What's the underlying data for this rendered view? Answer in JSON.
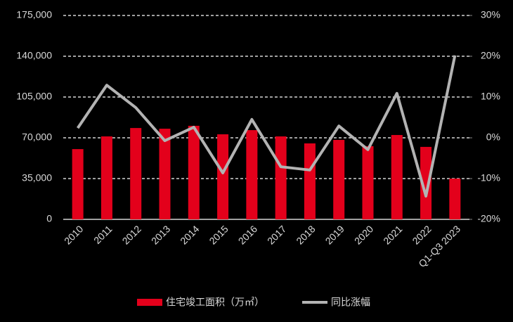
{
  "chart_data": {
    "type": "bar",
    "categories": [
      "2010",
      "2011",
      "2012",
      "2013",
      "2014",
      "2015",
      "2016",
      "2017",
      "2018",
      "2019",
      "2020",
      "2021",
      "2022",
      "Q1-Q3 2023"
    ],
    "series": [
      {
        "name": "住宅竣工面积（万㎡）",
        "type": "bar",
        "color": "#e3001b",
        "values": [
          60300,
          71200,
          78400,
          77800,
          80300,
          73000,
          76600,
          71200,
          65200,
          68200,
          62800,
          72400,
          62200,
          35000
        ]
      },
      {
        "name": "同比涨幅",
        "type": "line",
        "axis": "y2",
        "color": "#b3b3b3",
        "values": [
          2.4,
          12.9,
          7.4,
          -0.7,
          2.6,
          -8.6,
          4.5,
          -7.1,
          -7.9,
          2.9,
          -2.9,
          10.9,
          -14.3,
          20.2
        ]
      }
    ],
    "ylim": [
      0,
      175000
    ],
    "yticks": [
      0,
      {
        "value": 35000,
        "label": "35,000"
      },
      {
        "value": 70000,
        "label": "70,000"
      },
      {
        "value": 105000,
        "label": "105,000"
      },
      {
        "value": 140000,
        "label": "140,000"
      },
      {
        "value": 175000,
        "label": "175,000"
      }
    ],
    "y2lim": [
      -20,
      30
    ],
    "y2ticks": [
      {
        "value": -20,
        "label": "-20%"
      },
      {
        "value": -10,
        "label": "-10%"
      },
      {
        "value": 0,
        "label": "0%"
      },
      {
        "value": 10,
        "label": "10%"
      },
      {
        "value": 20,
        "label": "20%"
      },
      {
        "value": 30,
        "label": "30%"
      }
    ],
    "grid": true
  }
}
